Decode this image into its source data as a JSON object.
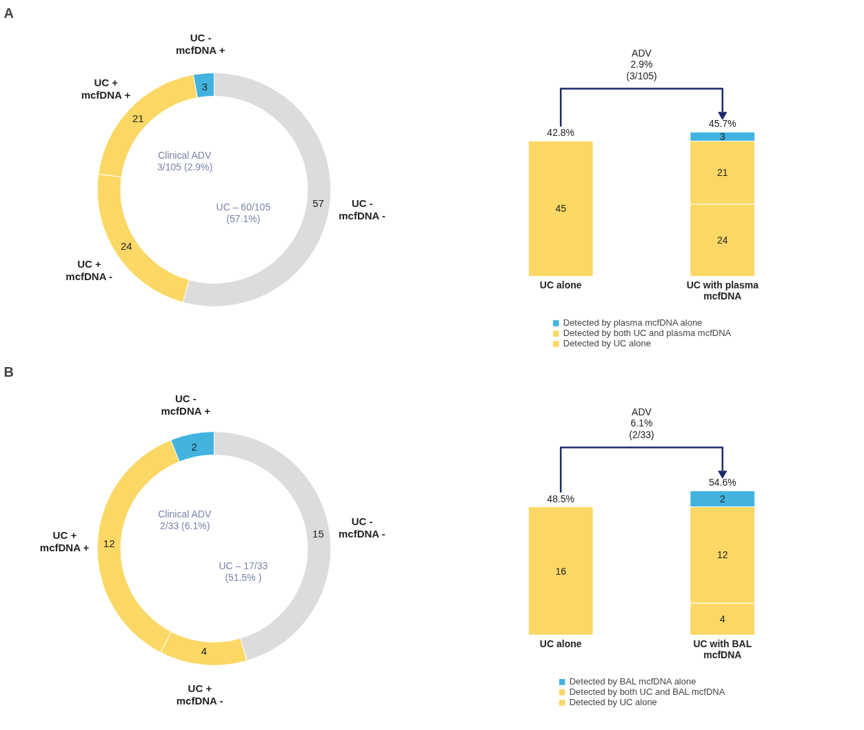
{
  "chart_data": [
    {
      "type": "donut",
      "title": "A",
      "categories": [
        "UC - mcfDNA +",
        "UC + mcfDNA +",
        "UC + mcfDNA -",
        "UC - mcfDNA -"
      ],
      "values": [
        3,
        21,
        24,
        57
      ],
      "colors": [
        "#41b3de",
        "#fbd865",
        "#fbd865",
        "#dcdcdc"
      ],
      "data_labels": true,
      "annotations": [
        "Clinical ADV 3/105 (2.9%)",
        "UC – 60/105 (57.1%)"
      ]
    },
    {
      "type": "bar",
      "stacked": true,
      "categories": [
        "UC alone",
        "UC with plasma mcfDNA"
      ],
      "series": [
        {
          "name": "Detected by UC alone",
          "color": "#fbd865",
          "values": [
            45,
            24
          ]
        },
        {
          "name": "Detected by both UC and plasma mcfDNA",
          "color": "#fbd865",
          "values": [
            null,
            21
          ]
        },
        {
          "name": "Detected by plasma mcfDNA alone",
          "color": "#41b3de",
          "values": [
            null,
            3
          ]
        }
      ],
      "data_labels": true,
      "annotations": [
        {
          "text": "42.8%",
          "x": "UC alone",
          "y": 45
        },
        {
          "text": "45.7%",
          "x": "UC with plasma mcfDNA",
          "y": 48
        },
        "ADV 2.9% (3/105)"
      ],
      "legend": "bottom",
      "grid": false
    },
    {
      "type": "donut",
      "title": "B",
      "categories": [
        "UC - mcfDNA +",
        "UC + mcfDNA +",
        "UC + mcfDNA -",
        "UC - mcfDNA -"
      ],
      "values": [
        2,
        12,
        4,
        15
      ],
      "colors": [
        "#41b3de",
        "#fbd865",
        "#fbd865",
        "#dcdcdc"
      ],
      "data_labels": true,
      "annotations": [
        "Clinical ADV 2/33 (6.1%)",
        "UC – 17/33 (51.5% )"
      ]
    },
    {
      "type": "bar",
      "stacked": true,
      "categories": [
        "UC alone",
        "UC with BAL mcfDNA"
      ],
      "series": [
        {
          "name": "Detected by UC alone",
          "color": "#fbd865",
          "values": [
            16,
            4
          ]
        },
        {
          "name": "Detected by both UC and BAL mcfDNA",
          "color": "#fbd865",
          "values": [
            null,
            12
          ]
        },
        {
          "name": "Detected by BAL mcfDNA alone",
          "color": "#41b3de",
          "values": [
            null,
            2
          ]
        }
      ],
      "data_labels": true,
      "annotations": [
        {
          "text": "48.5%",
          "x": "UC alone",
          "y": 16
        },
        {
          "text": "54.6%",
          "x": "UC with BAL mcfDNA",
          "y": 18
        },
        "ADV 6.1% (2/33)"
      ],
      "legend": "bottom",
      "grid": false
    }
  ]
}
